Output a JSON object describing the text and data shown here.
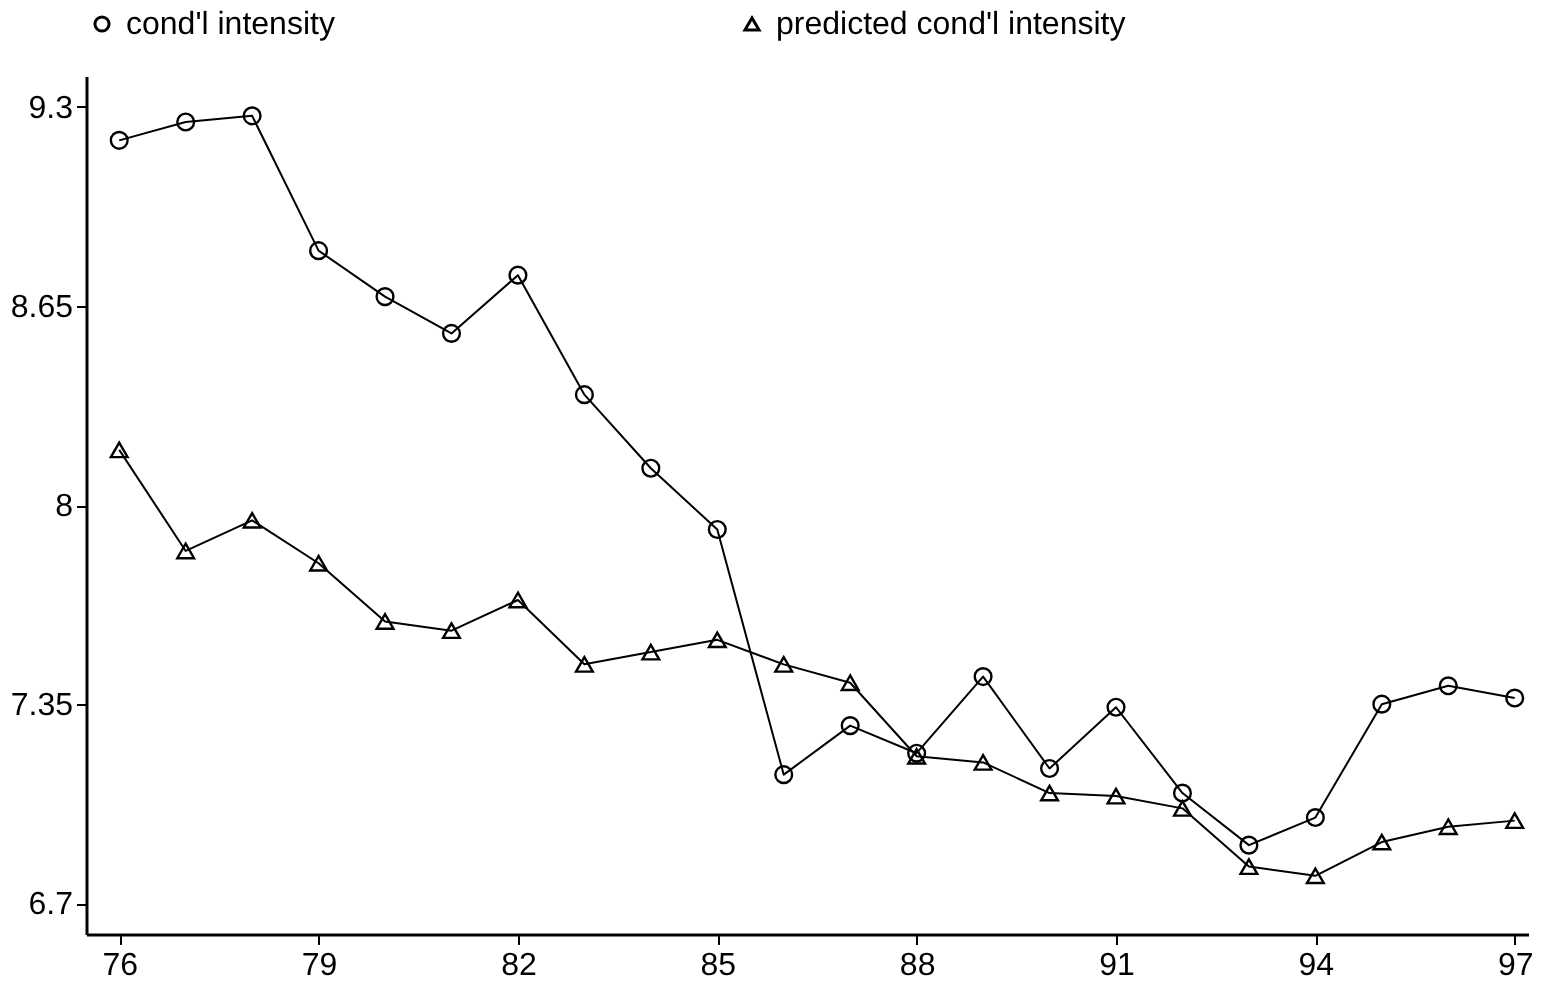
{
  "chart_data": {
    "type": "line",
    "x": [
      76,
      77,
      78,
      79,
      80,
      81,
      82,
      83,
      84,
      85,
      86,
      87,
      88,
      89,
      90,
      91,
      92,
      93,
      94,
      95,
      96,
      97
    ],
    "series": [
      {
        "name": "cond'l intensity",
        "color": "#000000",
        "marker": "circle",
        "values": [
          9.19,
          9.25,
          9.27,
          8.83,
          8.68,
          8.56,
          8.75,
          8.36,
          8.12,
          7.92,
          7.12,
          7.28,
          7.19,
          7.44,
          7.14,
          7.34,
          7.06,
          6.89,
          6.98,
          7.35,
          7.41,
          7.37
        ]
      },
      {
        "name": "predicted cond'l intensity",
        "color": "#000000",
        "marker": "triangle",
        "values": [
          8.18,
          7.85,
          7.95,
          7.81,
          7.62,
          7.59,
          7.69,
          7.48,
          7.52,
          7.56,
          7.48,
          7.42,
          7.18,
          7.16,
          7.06,
          7.05,
          7.01,
          6.82,
          6.79,
          6.9,
          6.95,
          6.97
        ]
      }
    ],
    "xlim": [
      75.5,
      97.2
    ],
    "xticks": [
      76,
      79,
      82,
      85,
      88,
      91,
      94,
      97
    ],
    "ylim": [
      6.6,
      9.4
    ],
    "yticks": [
      6.7,
      7.35,
      8,
      8.65,
      9.3
    ],
    "legend": "top",
    "grid": false,
    "line_style": "solid"
  }
}
